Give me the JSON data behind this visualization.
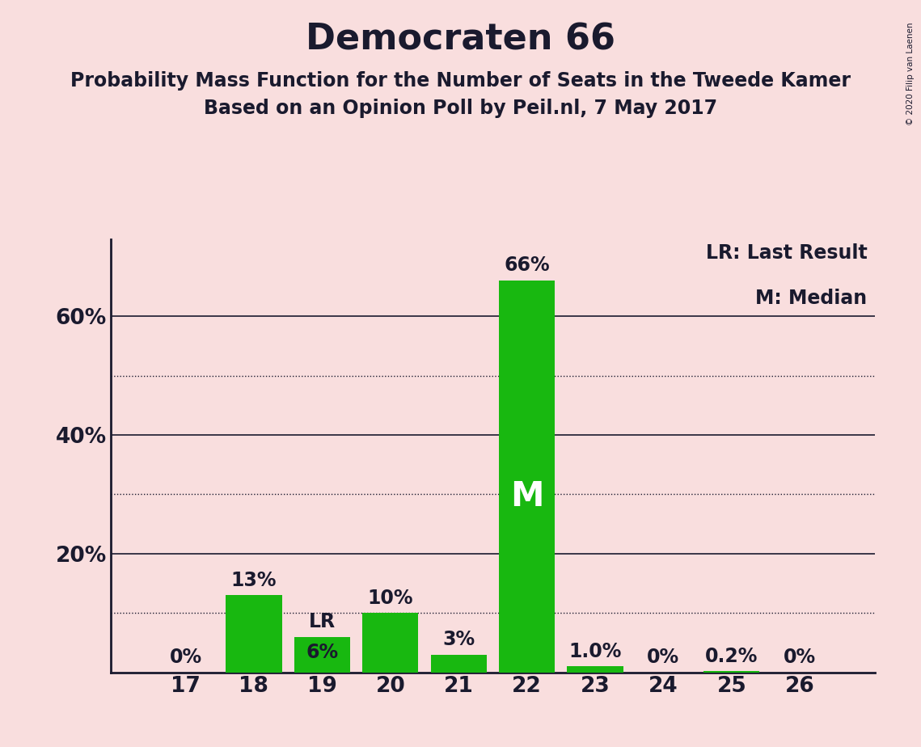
{
  "title": "Democraten 66",
  "subtitle1": "Probability Mass Function for the Number of Seats in the Tweede Kamer",
  "subtitle2": "Based on an Opinion Poll by Peil.nl, 7 May 2017",
  "watermark": "© 2020 Filip van Laenen",
  "seats": [
    17,
    18,
    19,
    20,
    21,
    22,
    23,
    24,
    25,
    26
  ],
  "values": [
    0.0,
    13.0,
    6.0,
    10.0,
    3.0,
    66.0,
    1.0,
    0.0,
    0.2,
    0.0
  ],
  "bar_color": "#18b810",
  "median_bar": 22,
  "lr_bar": 19,
  "legend_lr": "LR: Last Result",
  "legend_m": "M: Median",
  "median_label": "M",
  "background_color": "#f9dede",
  "text_color": "#1a1a2e",
  "dotted_yticks": [
    10,
    30,
    50
  ],
  "solid_yticks": [
    20,
    40,
    60
  ],
  "ylim": [
    0,
    73
  ],
  "bar_label_fontsize": 17,
  "title_fontsize": 32,
  "subtitle_fontsize": 17,
  "legend_fontsize": 17,
  "tick_fontsize": 19
}
